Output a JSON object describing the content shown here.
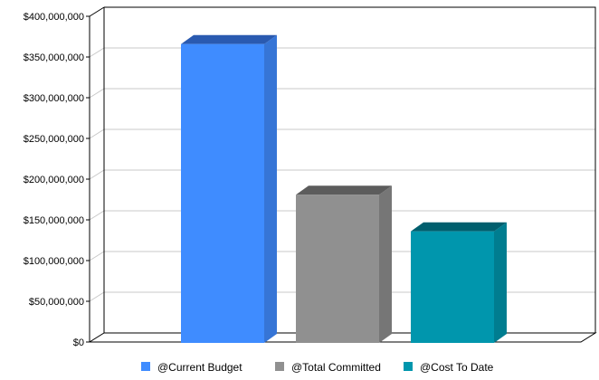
{
  "chart_data": {
    "type": "bar",
    "title": "",
    "xlabel": "",
    "ylabel": "",
    "ylim": [
      0,
      400000000
    ],
    "yticks": [
      0,
      50000000,
      100000000,
      150000000,
      200000000,
      250000000,
      300000000,
      350000000,
      400000000
    ],
    "ytick_labels": [
      "$0",
      "$50,000,000",
      "$100,000,000",
      "$150,000,000",
      "$200,000,000",
      "$250,000,000",
      "$300,000,000",
      "$350,000,000",
      "$400,000,000"
    ],
    "grid": true,
    "legend_position": "bottom",
    "series": [
      {
        "name": "@Current Budget",
        "value": 367000000,
        "color": "#3f8cff",
        "side_color": "#3675d6",
        "top_color": "#2a5ab0"
      },
      {
        "name": "@Total Committed",
        "value": 182000000,
        "color": "#909090",
        "side_color": "#767676",
        "top_color": "#5c5c5c"
      },
      {
        "name": "@Cost To Date",
        "value": 137000000,
        "color": "#0096ad",
        "side_color": "#007d90",
        "top_color": "#005f6e"
      }
    ]
  }
}
